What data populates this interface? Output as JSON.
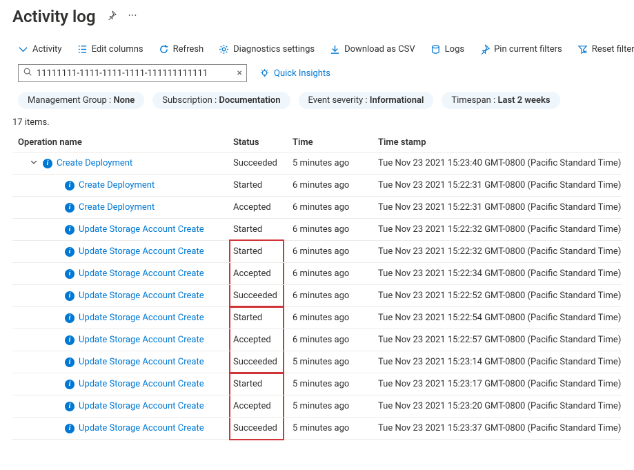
{
  "header": {
    "title": "Activity log"
  },
  "toolbar": {
    "activity": "Activity",
    "edit_columns": "Edit columns",
    "refresh": "Refresh",
    "diagnostics": "Diagnostics settings",
    "download_csv": "Download as CSV",
    "logs": "Logs",
    "pin_filters": "Pin current filters",
    "reset_filters": "Reset filters"
  },
  "search": {
    "value": "11111111-1111-1111-1111-111111111111",
    "quick_insights": "Quick Insights"
  },
  "filters": {
    "mgmt_group": {
      "label": "Management Group : ",
      "value": "None"
    },
    "subscription": {
      "label": "Subscription : ",
      "value": "Documentation"
    },
    "severity": {
      "label": "Event severity : ",
      "value": "Informational"
    },
    "timespan": {
      "label": "Timespan : ",
      "value": "Last 2 weeks"
    }
  },
  "items_count": "17 items.",
  "columns": {
    "op": "Operation name",
    "status": "Status",
    "time": "Time",
    "ts": "Time stamp"
  },
  "rows": [
    {
      "indent": 0,
      "chevron": true,
      "op": "Create Deployment",
      "status": "Succeeded",
      "time": "5 minutes ago",
      "ts": "Tue Nov 23 2021 15:23:40 GMT-0800 (Pacific Standard Time)",
      "hl": "none"
    },
    {
      "indent": 1,
      "chevron": false,
      "op": "Create Deployment",
      "status": "Started",
      "time": "6 minutes ago",
      "ts": "Tue Nov 23 2021 15:22:31 GMT-0800 (Pacific Standard Time)",
      "hl": "none"
    },
    {
      "indent": 1,
      "chevron": false,
      "op": "Create Deployment",
      "status": "Accepted",
      "time": "6 minutes ago",
      "ts": "Tue Nov 23 2021 15:22:31 GMT-0800 (Pacific Standard Time)",
      "hl": "none"
    },
    {
      "indent": 1,
      "chevron": false,
      "op": "Update Storage Account Create",
      "status": "Started",
      "time": "6 minutes ago",
      "ts": "Tue Nov 23 2021 15:22:32 GMT-0800 (Pacific Standard Time)",
      "hl": "none"
    },
    {
      "indent": 1,
      "chevron": false,
      "op": "Update Storage Account Create",
      "status": "Started",
      "time": "6 minutes ago",
      "ts": "Tue Nov 23 2021 15:22:32 GMT-0800 (Pacific Standard Time)",
      "hl": "g1-top"
    },
    {
      "indent": 1,
      "chevron": false,
      "op": "Update Storage Account Create",
      "status": "Accepted",
      "time": "6 minutes ago",
      "ts": "Tue Nov 23 2021 15:22:34 GMT-0800 (Pacific Standard Time)",
      "hl": "g1-mid"
    },
    {
      "indent": 1,
      "chevron": false,
      "op": "Update Storage Account Create",
      "status": "Succeeded",
      "time": "6 minutes ago",
      "ts": "Tue Nov 23 2021 15:22:52 GMT-0800 (Pacific Standard Time)",
      "hl": "g1-bot"
    },
    {
      "indent": 1,
      "chevron": false,
      "op": "Update Storage Account Create",
      "status": "Started",
      "time": "6 minutes ago",
      "ts": "Tue Nov 23 2021 15:22:54 GMT-0800 (Pacific Standard Time)",
      "hl": "g2-top"
    },
    {
      "indent": 1,
      "chevron": false,
      "op": "Update Storage Account Create",
      "status": "Accepted",
      "time": "6 minutes ago",
      "ts": "Tue Nov 23 2021 15:22:57 GMT-0800 (Pacific Standard Time)",
      "hl": "g2-mid"
    },
    {
      "indent": 1,
      "chevron": false,
      "op": "Update Storage Account Create",
      "status": "Succeeded",
      "time": "5 minutes ago",
      "ts": "Tue Nov 23 2021 15:23:14 GMT-0800 (Pacific Standard Time)",
      "hl": "g2-bot"
    },
    {
      "indent": 1,
      "chevron": false,
      "op": "Update Storage Account Create",
      "status": "Started",
      "time": "5 minutes ago",
      "ts": "Tue Nov 23 2021 15:23:17 GMT-0800 (Pacific Standard Time)",
      "hl": "g3-top"
    },
    {
      "indent": 1,
      "chevron": false,
      "op": "Update Storage Account Create",
      "status": "Accepted",
      "time": "5 minutes ago",
      "ts": "Tue Nov 23 2021 15:23:20 GMT-0800 (Pacific Standard Time)",
      "hl": "g3-mid"
    },
    {
      "indent": 1,
      "chevron": false,
      "op": "Update Storage Account Create",
      "status": "Succeeded",
      "time": "5 minutes ago",
      "ts": "Tue Nov 23 2021 15:23:37 GMT-0800 (Pacific Standard Time)",
      "hl": "g3-bot"
    }
  ],
  "colors": {
    "accent": "#0078d4",
    "pill_bg": "#eff6fc",
    "highlight_border": "#d13438",
    "row_border": "#edebe9"
  }
}
